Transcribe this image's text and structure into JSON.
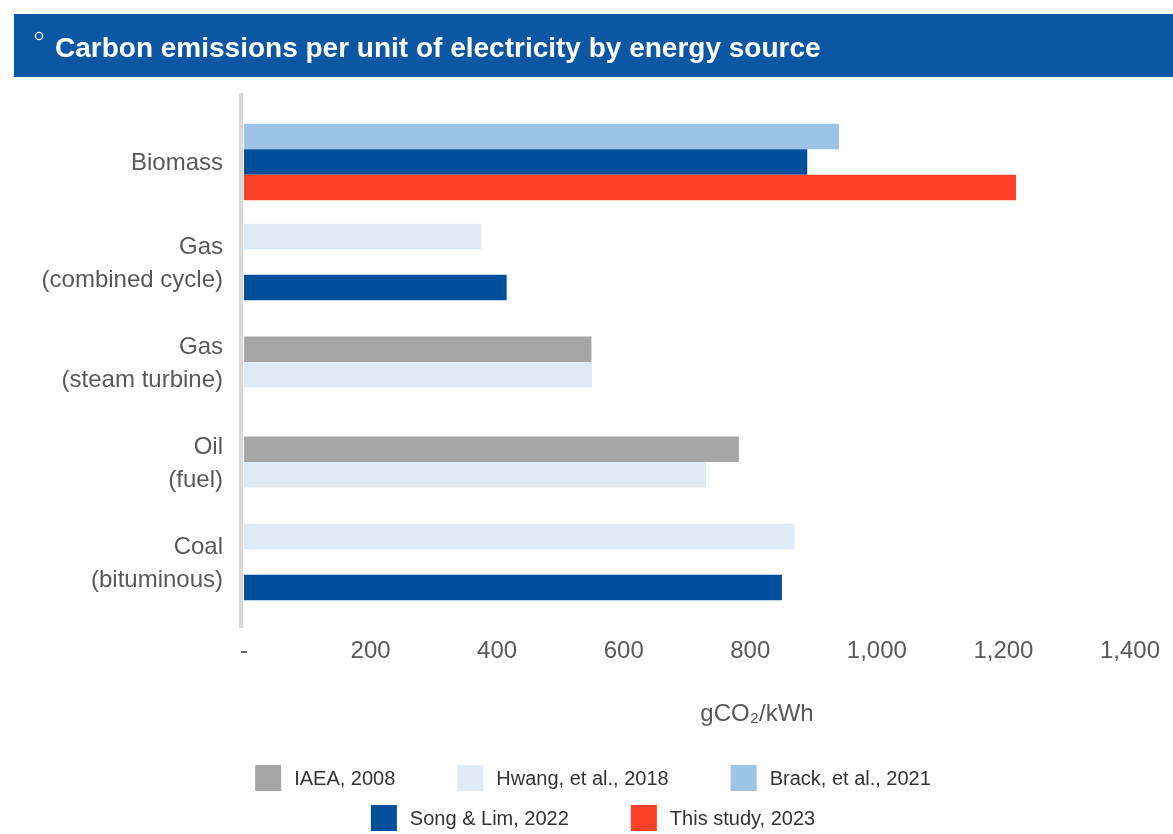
{
  "chart_data": {
    "type": "bar",
    "orientation": "horizontal",
    "title": "Carbon emissions per unit of electricity by energy source",
    "xlabel": "gCO₂/kWh",
    "categories": [
      "Biomass",
      "Gas (combined cycle)",
      "Gas (steam turbine)",
      "Oil (fuel)",
      "Coal (bituminous)"
    ],
    "series": [
      {
        "name": "IAEA, 2008",
        "color": "#a6a6a6",
        "values": [
          null,
          null,
          549,
          782,
          null
        ]
      },
      {
        "name": "Hwang, et al., 2018",
        "color": "#deeaf5",
        "values": [
          null,
          375,
          550,
          730,
          870
        ]
      },
      {
        "name": "Brack, et al., 2021",
        "color": "#9dc3e6",
        "values": [
          940,
          null,
          null,
          null,
          null
        ]
      },
      {
        "name": "Song & Lim, 2022",
        "color": "#004f9c",
        "values": [
          890,
          415,
          null,
          null,
          850
        ]
      },
      {
        "name": "This study, 2023",
        "color": "#fc4128",
        "values": [
          1220,
          null,
          null,
          null,
          null
        ]
      }
    ],
    "xlim": [
      0,
      1400
    ],
    "xticks": [
      {
        "value": 0,
        "label": "-"
      },
      200,
      400,
      600,
      800,
      {
        "value": 1000,
        "label": "1,000"
      },
      {
        "value": 1200,
        "label": "1,200"
      },
      {
        "value": 1400,
        "label": "1,400"
      }
    ],
    "legend": "bottom"
  }
}
